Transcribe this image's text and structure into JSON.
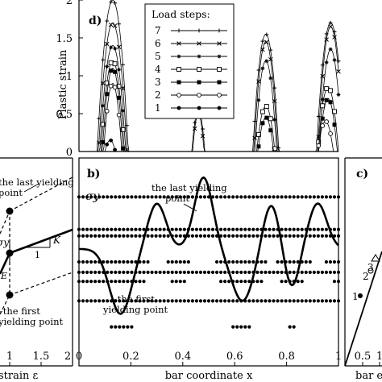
{
  "chart_data": [
    {
      "type": "line",
      "panel_label": "d)",
      "ylabel": "Plastic strain",
      "ylim": [
        0,
        2
      ],
      "yticks": [
        "0",
        "0.5",
        "1",
        "1.5",
        "2"
      ],
      "legend": {
        "title": "Load steps:",
        "placement": "top-right",
        "entries": [
          "7",
          "6",
          "5",
          "4",
          "3",
          "2",
          "1"
        ]
      },
      "series": [
        {
          "name": "7",
          "peaks": [
            {
              "x": 0.13,
              "y": 2.0,
              "w": 0.06
            },
            {
              "x": 0.46,
              "y": 0.55,
              "w": 0.025
            },
            {
              "x": 0.72,
              "y": 1.55,
              "w": 0.05
            },
            {
              "x": 0.97,
              "y": 1.7,
              "w": 0.055
            }
          ]
        },
        {
          "name": "6",
          "peaks": [
            {
              "x": 0.13,
              "y": 1.7,
              "w": 0.055
            },
            {
              "x": 0.46,
              "y": 0.5,
              "w": 0.022
            },
            {
              "x": 0.72,
              "y": 1.45,
              "w": 0.046
            },
            {
              "x": 0.97,
              "y": 1.65,
              "w": 0.05
            }
          ]
        },
        {
          "name": "5",
          "peaks": [
            {
              "x": 0.13,
              "y": 1.4,
              "w": 0.05
            },
            {
              "x": 0.72,
              "y": 1.2,
              "w": 0.042
            },
            {
              "x": 0.97,
              "y": 1.35,
              "w": 0.045
            }
          ]
        },
        {
          "name": "4",
          "peaks": [
            {
              "x": 0.13,
              "y": 1.2,
              "w": 0.045
            },
            {
              "x": 0.72,
              "y": 0.6,
              "w": 0.035
            },
            {
              "x": 0.96,
              "y": 0.85,
              "w": 0.04
            }
          ]
        },
        {
          "name": "3",
          "peaks": [
            {
              "x": 0.13,
              "y": 1.1,
              "w": 0.04
            },
            {
              "x": 0.72,
              "y": 0.45,
              "w": 0.03
            },
            {
              "x": 0.96,
              "y": 0.7,
              "w": 0.035
            }
          ]
        },
        {
          "name": "2",
          "peaks": [
            {
              "x": 0.13,
              "y": 0.9,
              "w": 0.035
            },
            {
              "x": 0.95,
              "y": 0.4,
              "w": 0.03
            }
          ]
        },
        {
          "name": "1",
          "peaks": [
            {
              "x": 0.12,
              "y": 0.15,
              "w": 0.02
            }
          ]
        }
      ]
    },
    {
      "type": "line",
      "panel_label": "b)",
      "xlabel": "bar coordinate x",
      "xlim": [
        0,
        1
      ],
      "xticks": [
        "0",
        "0.2",
        "0.4",
        "0.6",
        "0.8",
        "1"
      ],
      "y_symbol": "σy",
      "curve": {
        "mean": 0.9,
        "components": [
          {
            "amp": -0.5,
            "center": 0.16,
            "width": 0.06
          },
          {
            "amp": 0.35,
            "center": 0.3,
            "width": 0.05
          },
          {
            "amp": 0.55,
            "center": 0.48,
            "width": 0.05
          },
          {
            "amp": -0.4,
            "center": 0.63,
            "width": 0.06
          },
          {
            "amp": 0.35,
            "center": 0.74,
            "width": 0.045
          },
          {
            "amp": -0.3,
            "center": 0.82,
            "width": 0.04
          },
          {
            "amp": 0.35,
            "center": 0.92,
            "width": 0.05
          }
        ]
      },
      "dot_rows": [
        1.3,
        1.05,
        1.0,
        0.8,
        0.72,
        0.65,
        0.5,
        0.3
      ],
      "annotations": [
        {
          "text": "the last yielding",
          "text2": "point"
        },
        {
          "text": "–the first",
          "text2": "yielding point"
        }
      ]
    },
    {
      "type": "line",
      "panel_label": "",
      "xlabel": "strain ε",
      "xticks": [
        "1",
        "1.5",
        "2"
      ],
      "labels": {
        "sigma": "σy",
        "E": "E",
        "K": "K",
        "one": "1"
      },
      "annotations": [
        "the last yielding",
        "point",
        "–the first",
        "yielding point"
      ]
    },
    {
      "type": "line",
      "panel_label": "c)",
      "xlabel": "bar e",
      "xticks": [
        "0.5",
        "1"
      ],
      "point_labels": [
        "1",
        "2",
        "3"
      ]
    }
  ]
}
